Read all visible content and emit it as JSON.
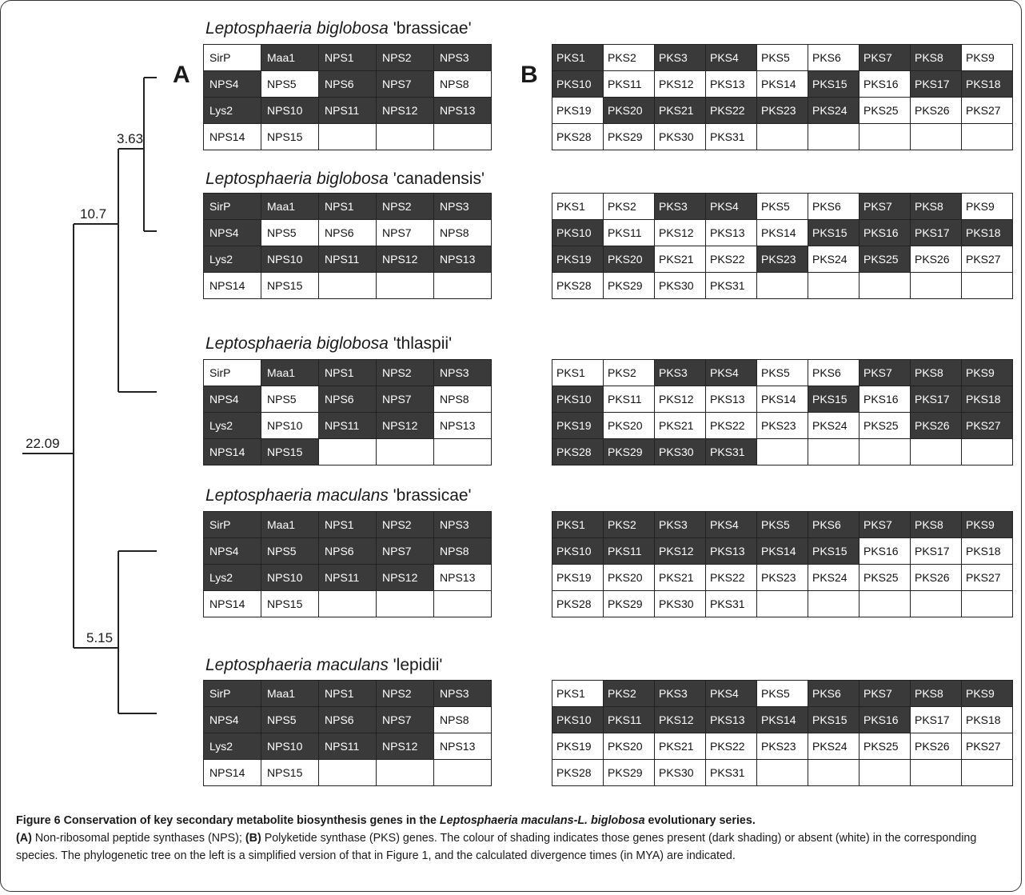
{
  "panels": {
    "a": "A",
    "b": "B"
  },
  "tree": {
    "root_label": "22.09",
    "node_bb_label": "10.7",
    "node_bc_label": "3.63",
    "node_m_label": "5.15"
  },
  "species": [
    {
      "genus": "Leptosphaeria biglobosa",
      "strain": " 'brassicae'",
      "nps": [
        [
          "SirP",
          0
        ],
        [
          "Maa1",
          1
        ],
        [
          "NPS1",
          1
        ],
        [
          "NPS2",
          1
        ],
        [
          "NPS3",
          1
        ],
        [
          "NPS4",
          1
        ],
        [
          "NPS5",
          0
        ],
        [
          "NPS6",
          1
        ],
        [
          "NPS7",
          1
        ],
        [
          "NPS8",
          0
        ],
        [
          "Lys2",
          1
        ],
        [
          "NPS10",
          1
        ],
        [
          "NPS11",
          1
        ],
        [
          "NPS12",
          1
        ],
        [
          "NPS13",
          1
        ],
        [
          "NPS14",
          0
        ],
        [
          "NPS15",
          0
        ],
        [
          "",
          0
        ],
        [
          "",
          0
        ],
        [
          "",
          0
        ]
      ],
      "pks": [
        [
          "PKS1",
          1
        ],
        [
          "PKS2",
          0
        ],
        [
          "PKS3",
          1
        ],
        [
          "PKS4",
          1
        ],
        [
          "PKS5",
          0
        ],
        [
          "PKS6",
          0
        ],
        [
          "PKS7",
          1
        ],
        [
          "PKS8",
          1
        ],
        [
          "PKS9",
          0
        ],
        [
          "PKS10",
          1
        ],
        [
          "PKS11",
          0
        ],
        [
          "PKS12",
          0
        ],
        [
          "PKS13",
          0
        ],
        [
          "PKS14",
          0
        ],
        [
          "PKS15",
          1
        ],
        [
          "PKS16",
          0
        ],
        [
          "PKS17",
          1
        ],
        [
          "PKS18",
          1
        ],
        [
          "PKS19",
          0
        ],
        [
          "PKS20",
          1
        ],
        [
          "PKS21",
          1
        ],
        [
          "PKS22",
          1
        ],
        [
          "PKS23",
          1
        ],
        [
          "PKS24",
          1
        ],
        [
          "PKS25",
          0
        ],
        [
          "PKS26",
          0
        ],
        [
          "PKS27",
          0
        ],
        [
          "PKS28",
          0
        ],
        [
          "PKS29",
          0
        ],
        [
          "PKS30",
          0
        ],
        [
          "PKS31",
          0
        ],
        [
          "",
          0
        ],
        [
          "",
          0
        ],
        [
          "",
          0
        ],
        [
          "",
          0
        ],
        [
          "",
          0
        ]
      ]
    },
    {
      "genus": "Leptosphaeria biglobosa",
      "strain": " 'canadensis'",
      "nps": [
        [
          "SirP",
          1
        ],
        [
          "Maa1",
          1
        ],
        [
          "NPS1",
          1
        ],
        [
          "NPS2",
          1
        ],
        [
          "NPS3",
          1
        ],
        [
          "NPS4",
          1
        ],
        [
          "NPS5",
          0
        ],
        [
          "NPS6",
          0
        ],
        [
          "NPS7",
          0
        ],
        [
          "NPS8",
          0
        ],
        [
          "Lys2",
          1
        ],
        [
          "NPS10",
          1
        ],
        [
          "NPS11",
          1
        ],
        [
          "NPS12",
          1
        ],
        [
          "NPS13",
          1
        ],
        [
          "NPS14",
          0
        ],
        [
          "NPS15",
          0
        ],
        [
          "",
          0
        ],
        [
          "",
          0
        ],
        [
          "",
          0
        ]
      ],
      "pks": [
        [
          "PKS1",
          0
        ],
        [
          "PKS2",
          0
        ],
        [
          "PKS3",
          1
        ],
        [
          "PKS4",
          1
        ],
        [
          "PKS5",
          0
        ],
        [
          "PKS6",
          0
        ],
        [
          "PKS7",
          1
        ],
        [
          "PKS8",
          1
        ],
        [
          "PKS9",
          0
        ],
        [
          "PKS10",
          1
        ],
        [
          "PKS11",
          0
        ],
        [
          "PKS12",
          0
        ],
        [
          "PKS13",
          0
        ],
        [
          "PKS14",
          0
        ],
        [
          "PKS15",
          1
        ],
        [
          "PKS16",
          1
        ],
        [
          "PKS17",
          1
        ],
        [
          "PKS18",
          1
        ],
        [
          "PKS19",
          1
        ],
        [
          "PKS20",
          1
        ],
        [
          "PKS21",
          0
        ],
        [
          "PKS22",
          0
        ],
        [
          "PKS23",
          1
        ],
        [
          "PKS24",
          0
        ],
        [
          "PKS25",
          1
        ],
        [
          "PKS26",
          0
        ],
        [
          "PKS27",
          0
        ],
        [
          "PKS28",
          0
        ],
        [
          "PKS29",
          0
        ],
        [
          "PKS30",
          0
        ],
        [
          "PKS31",
          0
        ],
        [
          "",
          0
        ],
        [
          "",
          0
        ],
        [
          "",
          0
        ],
        [
          "",
          0
        ],
        [
          "",
          0
        ]
      ]
    },
    {
      "genus": "Leptosphaeria biglobosa",
      "strain": " 'thlaspii'",
      "nps": [
        [
          "SirP",
          0
        ],
        [
          "Maa1",
          1
        ],
        [
          "NPS1",
          1
        ],
        [
          "NPS2",
          1
        ],
        [
          "NPS3",
          1
        ],
        [
          "NPS4",
          1
        ],
        [
          "NPS5",
          0
        ],
        [
          "NPS6",
          1
        ],
        [
          "NPS7",
          1
        ],
        [
          "NPS8",
          0
        ],
        [
          "Lys2",
          1
        ],
        [
          "NPS10",
          0
        ],
        [
          "NPS11",
          1
        ],
        [
          "NPS12",
          1
        ],
        [
          "NPS13",
          0
        ],
        [
          "NPS14",
          1
        ],
        [
          "NPS15",
          1
        ],
        [
          "",
          0
        ],
        [
          "",
          0
        ],
        [
          "",
          0
        ]
      ],
      "pks": [
        [
          "PKS1",
          0
        ],
        [
          "PKS2",
          0
        ],
        [
          "PKS3",
          1
        ],
        [
          "PKS4",
          1
        ],
        [
          "PKS5",
          0
        ],
        [
          "PKS6",
          0
        ],
        [
          "PKS7",
          1
        ],
        [
          "PKS8",
          1
        ],
        [
          "PKS9",
          1
        ],
        [
          "PKS10",
          1
        ],
        [
          "PKS11",
          0
        ],
        [
          "PKS12",
          0
        ],
        [
          "PKS13",
          0
        ],
        [
          "PKS14",
          0
        ],
        [
          "PKS15",
          1
        ],
        [
          "PKS16",
          0
        ],
        [
          "PKS17",
          1
        ],
        [
          "PKS18",
          1
        ],
        [
          "PKS19",
          1
        ],
        [
          "PKS20",
          0
        ],
        [
          "PKS21",
          0
        ],
        [
          "PKS22",
          0
        ],
        [
          "PKS23",
          0
        ],
        [
          "PKS24",
          0
        ],
        [
          "PKS25",
          0
        ],
        [
          "PKS26",
          1
        ],
        [
          "PKS27",
          1
        ],
        [
          "PKS28",
          1
        ],
        [
          "PKS29",
          1
        ],
        [
          "PKS30",
          1
        ],
        [
          "PKS31",
          1
        ],
        [
          "",
          0
        ],
        [
          "",
          0
        ],
        [
          "",
          0
        ],
        [
          "",
          0
        ],
        [
          "",
          0
        ]
      ]
    },
    {
      "genus": "Leptosphaeria maculans",
      "strain": " 'brassicae'",
      "nps": [
        [
          "SirP",
          1
        ],
        [
          "Maa1",
          1
        ],
        [
          "NPS1",
          1
        ],
        [
          "NPS2",
          1
        ],
        [
          "NPS3",
          1
        ],
        [
          "NPS4",
          1
        ],
        [
          "NPS5",
          1
        ],
        [
          "NPS6",
          1
        ],
        [
          "NPS7",
          1
        ],
        [
          "NPS8",
          1
        ],
        [
          "Lys2",
          1
        ],
        [
          "NPS10",
          1
        ],
        [
          "NPS11",
          1
        ],
        [
          "NPS12",
          1
        ],
        [
          "NPS13",
          0
        ],
        [
          "NPS14",
          0
        ],
        [
          "NPS15",
          0
        ],
        [
          "",
          0
        ],
        [
          "",
          0
        ],
        [
          "",
          0
        ]
      ],
      "pks": [
        [
          "PKS1",
          1
        ],
        [
          "PKS2",
          1
        ],
        [
          "PKS3",
          1
        ],
        [
          "PKS4",
          1
        ],
        [
          "PKS5",
          1
        ],
        [
          "PKS6",
          1
        ],
        [
          "PKS7",
          1
        ],
        [
          "PKS8",
          1
        ],
        [
          "PKS9",
          1
        ],
        [
          "PKS10",
          1
        ],
        [
          "PKS11",
          1
        ],
        [
          "PKS12",
          1
        ],
        [
          "PKS13",
          1
        ],
        [
          "PKS14",
          1
        ],
        [
          "PKS15",
          1
        ],
        [
          "PKS16",
          0
        ],
        [
          "PKS17",
          0
        ],
        [
          "PKS18",
          0
        ],
        [
          "PKS19",
          0
        ],
        [
          "PKS20",
          0
        ],
        [
          "PKS21",
          0
        ],
        [
          "PKS22",
          0
        ],
        [
          "PKS23",
          0
        ],
        [
          "PKS24",
          0
        ],
        [
          "PKS25",
          0
        ],
        [
          "PKS26",
          0
        ],
        [
          "PKS27",
          0
        ],
        [
          "PKS28",
          0
        ],
        [
          "PKS29",
          0
        ],
        [
          "PKS30",
          0
        ],
        [
          "PKS31",
          0
        ],
        [
          "",
          0
        ],
        [
          "",
          0
        ],
        [
          "",
          0
        ],
        [
          "",
          0
        ],
        [
          "",
          0
        ]
      ]
    },
    {
      "genus": "Leptosphaeria maculans",
      "strain": " 'lepidii'",
      "nps": [
        [
          "SirP",
          1
        ],
        [
          "Maa1",
          1
        ],
        [
          "NPS1",
          1
        ],
        [
          "NPS2",
          1
        ],
        [
          "NPS3",
          1
        ],
        [
          "NPS4",
          1
        ],
        [
          "NPS5",
          1
        ],
        [
          "NPS6",
          1
        ],
        [
          "NPS7",
          1
        ],
        [
          "NPS8",
          0
        ],
        [
          "Lys2",
          1
        ],
        [
          "NPS10",
          1
        ],
        [
          "NPS11",
          1
        ],
        [
          "NPS12",
          1
        ],
        [
          "NPS13",
          0
        ],
        [
          "NPS14",
          0
        ],
        [
          "NPS15",
          0
        ],
        [
          "",
          0
        ],
        [
          "",
          0
        ],
        [
          "",
          0
        ]
      ],
      "pks": [
        [
          "PKS1",
          0
        ],
        [
          "PKS2",
          1
        ],
        [
          "PKS3",
          1
        ],
        [
          "PKS4",
          1
        ],
        [
          "PKS5",
          0
        ],
        [
          "PKS6",
          1
        ],
        [
          "PKS7",
          1
        ],
        [
          "PKS8",
          1
        ],
        [
          "PKS9",
          1
        ],
        [
          "PKS10",
          1
        ],
        [
          "PKS11",
          1
        ],
        [
          "PKS12",
          1
        ],
        [
          "PKS13",
          1
        ],
        [
          "PKS14",
          1
        ],
        [
          "PKS15",
          1
        ],
        [
          "PKS16",
          1
        ],
        [
          "PKS17",
          0
        ],
        [
          "PKS18",
          0
        ],
        [
          "PKS19",
          0
        ],
        [
          "PKS20",
          0
        ],
        [
          "PKS21",
          0
        ],
        [
          "PKS22",
          0
        ],
        [
          "PKS23",
          0
        ],
        [
          "PKS24",
          0
        ],
        [
          "PKS25",
          0
        ],
        [
          "PKS26",
          0
        ],
        [
          "PKS27",
          0
        ],
        [
          "PKS28",
          0
        ],
        [
          "PKS29",
          0
        ],
        [
          "PKS30",
          0
        ],
        [
          "PKS31",
          0
        ],
        [
          "",
          0
        ],
        [
          "",
          0
        ],
        [
          "",
          0
        ],
        [
          "",
          0
        ],
        [
          "",
          0
        ]
      ]
    }
  ],
  "caption": {
    "fig_label": "Figure 6 Conservation of key secondary metabolite biosynthesis genes in the ",
    "fig_italic": "Leptosphaeria maculans-L. biglobosa",
    "fig_tail": " evolutionary series.",
    "a_label": "(A)",
    "a_text": " Non-ribosomal peptide synthases (NPS); ",
    "b_label": "(B)",
    "b_text": " Polyketide synthase (PKS) genes. The colour of shading indicates those genes present (dark shading) or absent (white) in the corresponding species. The phylogenetic tree on the left is a simplified version of that in Figure 1, and the calculated divergence times (in MYA) are indicated."
  },
  "colors": {
    "present": "#3a3a3a",
    "absent": "#ffffff"
  }
}
